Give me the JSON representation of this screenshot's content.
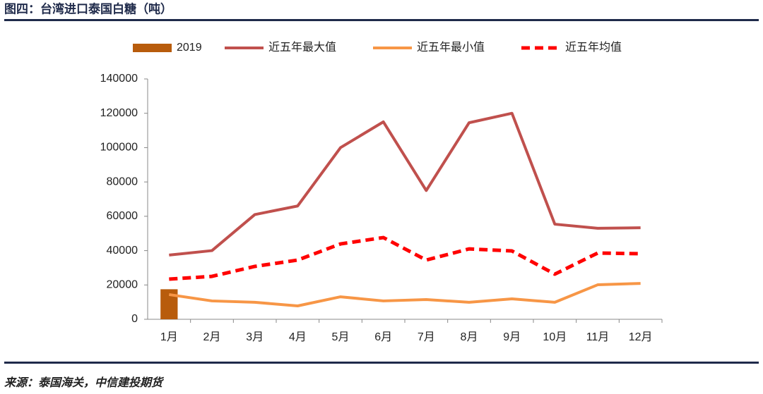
{
  "chart_data": {
    "type": "combo",
    "title": "图四：台湾进口泰国白糖（吨）",
    "source": "来源：泰国海关，中信建投期货",
    "categories": [
      "1月",
      "2月",
      "3月",
      "4月",
      "5月",
      "6月",
      "7月",
      "8月",
      "9月",
      "10月",
      "11月",
      "12月"
    ],
    "series": [
      {
        "name": "2019",
        "type": "bar",
        "color": "#b85c0c",
        "values": [
          17500,
          null,
          null,
          null,
          null,
          null,
          null,
          null,
          null,
          null,
          null,
          null
        ]
      },
      {
        "name": "近五年最大值",
        "type": "line",
        "color": "#c0504d",
        "dashed": false,
        "values": [
          37400,
          40000,
          61000,
          66000,
          100000,
          115000,
          75000,
          114500,
          120000,
          55400,
          53000,
          53300
        ]
      },
      {
        "name": "近五年最小值",
        "type": "line",
        "color": "#f79646",
        "dashed": false,
        "values": [
          14400,
          10700,
          9900,
          7800,
          13100,
          10700,
          11500,
          9900,
          11900,
          9900,
          20100,
          20900
        ]
      },
      {
        "name": "近五年均值",
        "type": "line",
        "color": "#ff0000",
        "dashed": true,
        "values": [
          23400,
          25000,
          30800,
          34500,
          43900,
          47600,
          34500,
          41000,
          39800,
          26300,
          38600,
          38200
        ]
      }
    ],
    "ylim": [
      0,
      140000
    ],
    "yticks": [
      0,
      20000,
      40000,
      60000,
      80000,
      100000,
      120000,
      140000
    ],
    "legend": "top",
    "grid": false
  }
}
